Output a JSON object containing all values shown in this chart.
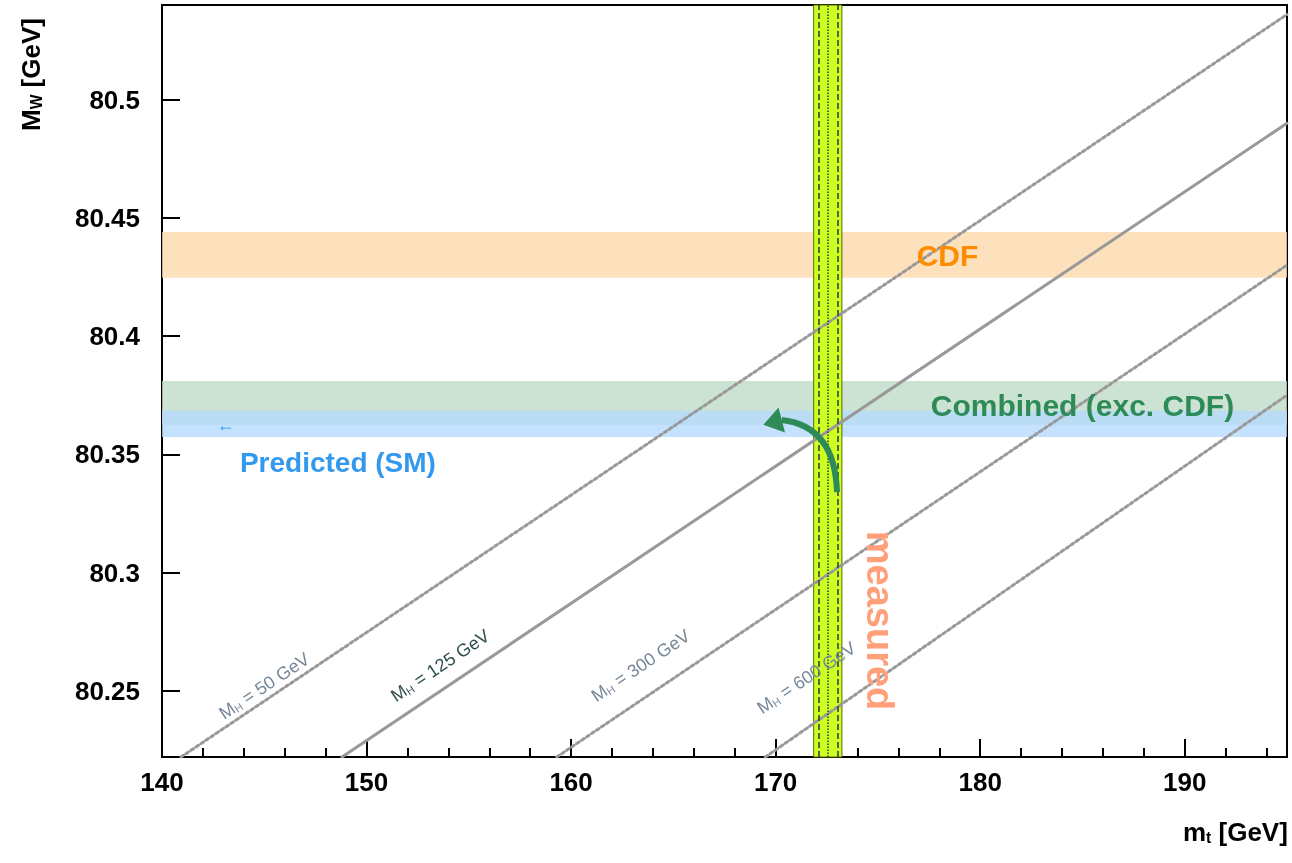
{
  "chart_data": {
    "type": "line",
    "xlabel": "m$_{t}$ [GeV]",
    "ylabel": "M$_{W}$ [GeV]",
    "xlim": [
      140,
      195
    ],
    "xticks": [
      140,
      150,
      160,
      170,
      180,
      190
    ],
    "ylim": [
      80.222,
      80.54
    ],
    "yticks": [
      80.25,
      80.3,
      80.35,
      80.4,
      80.45,
      80.5
    ],
    "grid": false,
    "marker": "none",
    "series": [
      {
        "color": "#999999",
        "line_style": "dotted",
        "x": [
          140.93,
          195
        ],
        "values": [
          80.222,
          80.536
        ]
      },
      {
        "color": "#999999",
        "line_style": "solid",
        "x": [
          148.8,
          195
        ],
        "values": [
          80.222,
          80.49
        ]
      },
      {
        "color": "#999999",
        "line_style": "dotted",
        "x": [
          159.3,
          195
        ],
        "values": [
          80.222,
          80.43
        ]
      },
      {
        "color": "#999999",
        "line_style": "dotted",
        "x": [
          169.5,
          195
        ],
        "values": [
          80.222,
          80.375
        ]
      }
    ],
    "bands": [
      {
        "axis": "y",
        "from": 80.4247,
        "to": 80.444,
        "label": "CDF",
        "color": "#fdd9ac"
      },
      {
        "axis": "y",
        "from": 80.3625,
        "to": 80.381,
        "label": "Combined (exc. CDF)",
        "color": "#bfdcc9"
      },
      {
        "axis": "y",
        "from": 80.3573,
        "to": 80.3684,
        "label": "Predicted (SM)",
        "color": "#b5dafc"
      },
      {
        "axis": "x",
        "from": 171.86,
        "to": 173.24,
        "label": "measured",
        "color": "#ccff22"
      }
    ],
    "ref_lines": [
      {
        "axis": "x",
        "value": 172.1,
        "color": "#333333",
        "line_style": "dashed"
      },
      {
        "axis": "x",
        "value": 173.02,
        "color": "#333333",
        "line_style": "dashed"
      },
      {
        "axis": "x",
        "value": 172.56,
        "color": "#333333",
        "line_style": "dotted"
      }
    ],
    "annotations": [
      "M$_{H}$ = 50 GeV",
      "M$_{H}$ = 125 GeV",
      "M$_{H}$ = 300 GeV",
      "M$_{H}$ = 600 GeV",
      "←"
    ]
  }
}
